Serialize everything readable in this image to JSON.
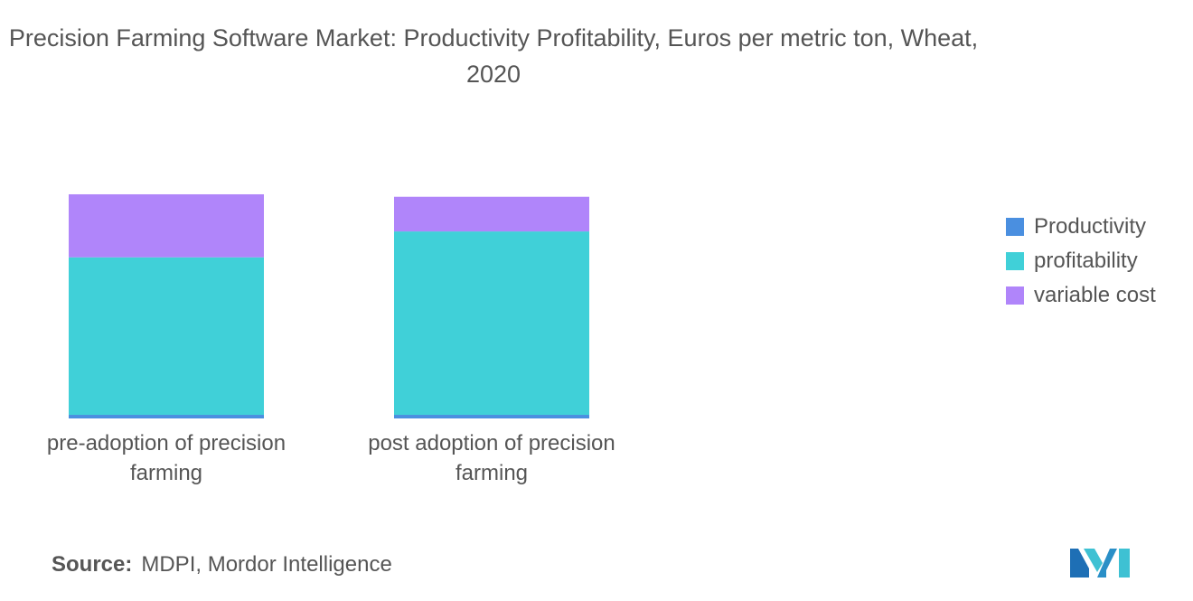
{
  "title": "Precision Farming Software Market: Productivity Profitability, Euros per metric ton, Wheat, 2020",
  "source": {
    "prefix": "Source:",
    "text": "MDPI, Mordor Intelligence"
  },
  "colors": {
    "productivity": "#4a8fe0",
    "profitability": "#40d0d8",
    "variable_cost": "#b085fa"
  },
  "chart_data": {
    "type": "bar",
    "stacked": true,
    "title": "Precision Farming Software Market: Productivity Profitability, Euros per metric ton, Wheat, 2020",
    "categories": [
      "pre-adoption of precision farming",
      "post adoption of precision farming"
    ],
    "series": [
      {
        "name": "Productivity",
        "color": "#4a8fe0",
        "values": [
          1.6,
          1.6
        ]
      },
      {
        "name": "profitability",
        "color": "#40d0d8",
        "values": [
          70,
          81.5
        ]
      },
      {
        "name": "variable cost",
        "color": "#b085fa",
        "values": [
          28,
          15.4
        ]
      }
    ],
    "xlabel": "",
    "ylabel": "",
    "ylim": [
      0,
      100
    ],
    "grid": false,
    "legend_position": "right"
  }
}
